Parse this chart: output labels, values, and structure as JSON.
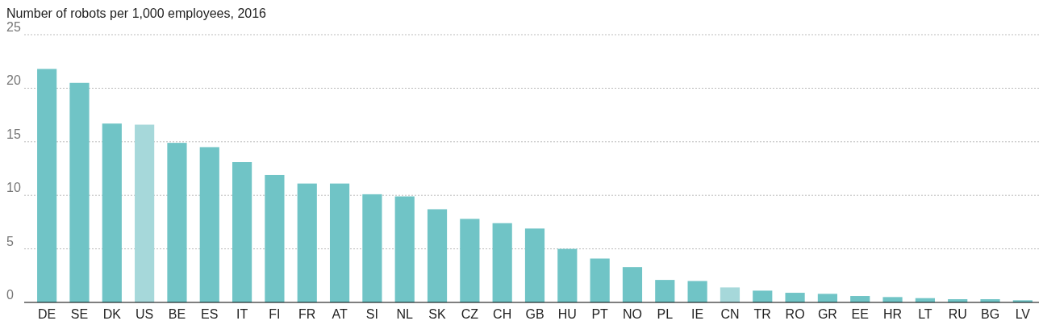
{
  "chart_data": {
    "type": "bar",
    "title": "Number of robots per 1,000 employees, 2016",
    "categories": [
      "DE",
      "SE",
      "DK",
      "US",
      "BE",
      "ES",
      "IT",
      "FI",
      "FR",
      "AT",
      "SI",
      "NL",
      "SK",
      "CZ",
      "CH",
      "GB",
      "HU",
      "PT",
      "NO",
      "PL",
      "IE",
      "CN",
      "TR",
      "RO",
      "GR",
      "EE",
      "HR",
      "LT",
      "RU",
      "BG",
      "LV"
    ],
    "values": [
      21.8,
      20.5,
      16.7,
      16.6,
      14.9,
      14.5,
      13.1,
      11.9,
      11.1,
      11.1,
      10.1,
      9.9,
      8.7,
      7.8,
      7.4,
      6.9,
      5.0,
      4.1,
      3.3,
      2.1,
      2.0,
      1.4,
      1.1,
      0.9,
      0.8,
      0.6,
      0.5,
      0.4,
      0.3,
      0.3,
      0.2
    ],
    "colors": [
      "#70c4c6",
      "#70c4c6",
      "#70c4c6",
      "#a6d8da",
      "#70c4c6",
      "#70c4c6",
      "#70c4c6",
      "#70c4c6",
      "#70c4c6",
      "#70c4c6",
      "#70c4c6",
      "#70c4c6",
      "#70c4c6",
      "#70c4c6",
      "#70c4c6",
      "#70c4c6",
      "#70c4c6",
      "#70c4c6",
      "#70c4c6",
      "#70c4c6",
      "#70c4c6",
      "#a6d8da",
      "#70c4c6",
      "#70c4c6",
      "#70c4c6",
      "#70c4c6",
      "#70c4c6",
      "#70c4c6",
      "#70c4c6",
      "#70c4c6",
      "#70c4c6"
    ],
    "ylim": [
      0,
      25
    ],
    "yticks": [
      0,
      5,
      10,
      15,
      20,
      25
    ],
    "grid": "y"
  }
}
